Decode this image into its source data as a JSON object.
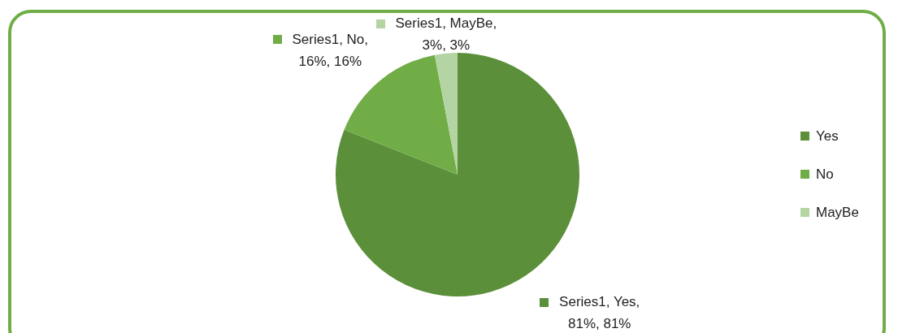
{
  "chart_data": {
    "type": "pie",
    "categories": [
      "Yes",
      "No",
      "MayBe"
    ],
    "values": [
      81,
      16,
      3
    ],
    "colors": [
      "#5b8f3a",
      "#70ad47",
      "#b5d4a4"
    ],
    "value_labels": [
      "Series1, Yes, 81%, 81%",
      "Series1, No, 16%, 16%",
      "Series1, MayBe, 3%, 3%"
    ],
    "legend": "right"
  }
}
